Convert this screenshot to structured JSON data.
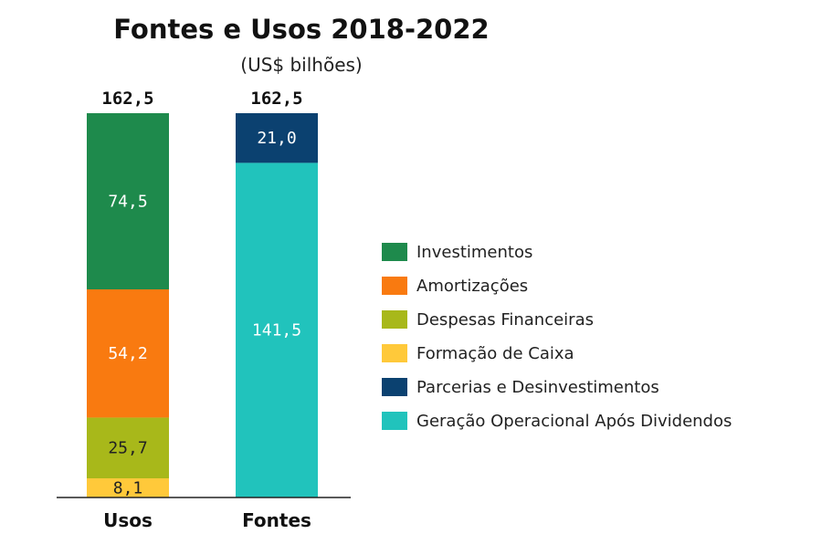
{
  "chart_data": {
    "type": "bar",
    "stacked": true,
    "title": "Fontes e Usos 2018-2022",
    "subtitle": "(US$ bilhões)",
    "categories": [
      "Usos",
      "Fontes"
    ],
    "totals": [
      "162,5",
      "162,5"
    ],
    "series": [
      {
        "name": "Investimentos",
        "color": "#1e8a4c",
        "label_color": "#ffffff",
        "values": [
          74.5,
          0
        ],
        "labels": [
          "74,5",
          ""
        ]
      },
      {
        "name": "Amortizações",
        "color": "#f97a10",
        "label_color": "#ffffff",
        "values": [
          54.2,
          0
        ],
        "labels": [
          "54,2",
          ""
        ]
      },
      {
        "name": "Despesas Financeiras",
        "color": "#a8b81a",
        "label_color": "#222222",
        "values": [
          25.7,
          0
        ],
        "labels": [
          "25,7",
          ""
        ]
      },
      {
        "name": "Formação de Caixa",
        "color": "#ffc93a",
        "label_color": "#222222",
        "values": [
          8.1,
          0
        ],
        "labels": [
          "8,1",
          ""
        ]
      },
      {
        "name": "Parcerias e Desinvestimentos",
        "color": "#0b4170",
        "label_color": "#ffffff",
        "values": [
          0,
          21.0
        ],
        "labels": [
          "",
          "21,0"
        ]
      },
      {
        "name": "Geração Operacional Após Dividendos",
        "color": "#21c3bc",
        "label_color": "#ffffff",
        "values": [
          0,
          141.5
        ],
        "labels": [
          "",
          "141,5"
        ]
      }
    ],
    "stack_order": {
      "Usos": [
        "Formação de Caixa",
        "Despesas Financeiras",
        "Amortizações",
        "Investimentos"
      ],
      "Fontes": [
        "Geração Operacional Após Dividendos",
        "Parcerias e Desinvestimentos"
      ]
    },
    "ylim": [
      0,
      162.5
    ],
    "xlabel": "",
    "ylabel": "",
    "grid": false,
    "legend_position": "right"
  }
}
